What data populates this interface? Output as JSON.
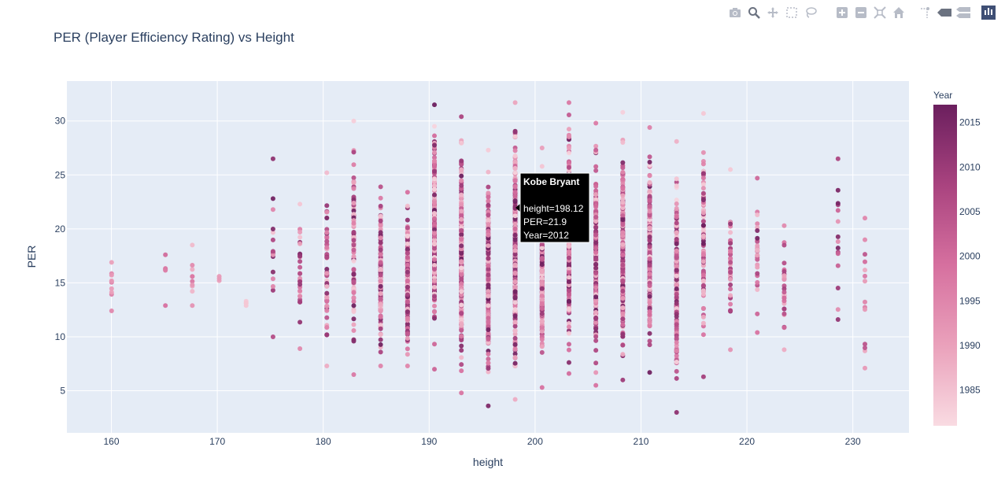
{
  "title": "PER (Player Efficiency Rating) vs Height",
  "toolbar": {
    "icons": [
      "camera-icon",
      "zoom-icon",
      "pan-icon",
      "box-select-icon",
      "lasso-icon",
      "zoom-in-icon",
      "zoom-out-icon",
      "autoscale-icon",
      "home-icon",
      "spike-lines-icon",
      "hover-closest-icon",
      "hover-compare-icon",
      "plotly-logo-icon"
    ]
  },
  "tooltip": {
    "name": "Kobe Bryant",
    "line1": "height=198.12",
    "line2": "PER=21.9",
    "line3": "Year=2012"
  },
  "colors": {
    "plot_bg": "#e5ecf6",
    "grid": "#ffffff",
    "text": "#2a3f5f",
    "scale_low": "#f6d3dc",
    "scale_mid": "#d96a9c",
    "scale_high": "#6b1f5e"
  },
  "chart_data": {
    "type": "scatter",
    "title": "PER (Player Efficiency Rating) vs Height",
    "xlabel": "height",
    "ylabel": "PER",
    "xlim": [
      155.8,
      235.3
    ],
    "ylim": [
      1.1,
      33.7
    ],
    "xticks": [
      160,
      170,
      180,
      190,
      200,
      210,
      220,
      230
    ],
    "yticks": [
      5,
      10,
      15,
      20,
      25,
      30
    ],
    "grid": true,
    "colorbar": {
      "title": "Year",
      "range": [
        1981,
        2017
      ],
      "ticks": [
        1985,
        1990,
        1995,
        2000,
        2005,
        2010,
        2015
      ]
    },
    "columns": [
      {
        "x": 160.02,
        "min": 12.4,
        "max": 16.9,
        "n": 10,
        "year": [
          1986,
          1999
        ]
      },
      {
        "x": 165.1,
        "min": 12.9,
        "max": 17.6,
        "n": 5,
        "year": [
          1995,
          2005
        ]
      },
      {
        "x": 167.64,
        "min": 12.9,
        "max": 18.5,
        "n": 10,
        "year": [
          1985,
          1998
        ]
      },
      {
        "x": 170.18,
        "min": 15.2,
        "max": 15.6,
        "n": 3,
        "year": [
          1990,
          1992
        ]
      },
      {
        "x": 172.72,
        "min": 12.9,
        "max": 13.3,
        "n": 4,
        "year": [
          1983,
          1985
        ]
      },
      {
        "x": 175.26,
        "min": 10.0,
        "max": 26.5,
        "n": 16,
        "year": [
          1985,
          2016
        ]
      },
      {
        "x": 177.8,
        "min": 8.9,
        "max": 22.3,
        "n": 28,
        "year": [
          1984,
          2014
        ]
      },
      {
        "x": 180.34,
        "min": 7.3,
        "max": 25.2,
        "n": 55,
        "year": [
          1983,
          2016
        ]
      },
      {
        "x": 182.88,
        "min": 6.5,
        "max": 30.0,
        "n": 90,
        "year": [
          1982,
          2017
        ]
      },
      {
        "x": 185.42,
        "min": 7.3,
        "max": 23.9,
        "n": 140,
        "year": [
          1982,
          2017
        ]
      },
      {
        "x": 187.96,
        "min": 7.3,
        "max": 23.4,
        "n": 170,
        "year": [
          1982,
          2017
        ]
      },
      {
        "x": 190.5,
        "min": 7.0,
        "max": 31.5,
        "n": 230,
        "year": [
          1982,
          2017
        ]
      },
      {
        "x": 193.04,
        "min": 4.8,
        "max": 30.4,
        "n": 240,
        "year": [
          1982,
          2017
        ]
      },
      {
        "x": 195.58,
        "min": 3.6,
        "max": 27.3,
        "n": 250,
        "year": [
          1982,
          2017
        ]
      },
      {
        "x": 198.12,
        "min": 4.2,
        "max": 31.7,
        "n": 280,
        "year": [
          1982,
          2017
        ]
      },
      {
        "x": 200.66,
        "min": 5.3,
        "max": 27.5,
        "n": 250,
        "year": [
          1982,
          2017
        ]
      },
      {
        "x": 203.2,
        "min": 6.6,
        "max": 31.7,
        "n": 260,
        "year": [
          1982,
          2017
        ]
      },
      {
        "x": 205.74,
        "min": 5.5,
        "max": 29.8,
        "n": 250,
        "year": [
          1982,
          2017
        ]
      },
      {
        "x": 208.28,
        "min": 6.0,
        "max": 30.8,
        "n": 230,
        "year": [
          1982,
          2017
        ]
      },
      {
        "x": 210.82,
        "min": 6.7,
        "max": 29.4,
        "n": 200,
        "year": [
          1982,
          2017
        ]
      },
      {
        "x": 213.36,
        "min": 3.0,
        "max": 28.1,
        "n": 180,
        "year": [
          1982,
          2017
        ]
      },
      {
        "x": 215.9,
        "min": 6.3,
        "max": 30.7,
        "n": 90,
        "year": [
          1982,
          2017
        ]
      },
      {
        "x": 218.44,
        "min": 8.8,
        "max": 25.5,
        "n": 45,
        "year": [
          1982,
          2012
        ]
      },
      {
        "x": 220.98,
        "min": 10.4,
        "max": 24.7,
        "n": 28,
        "year": [
          1985,
          2016
        ]
      },
      {
        "x": 223.52,
        "min": 8.8,
        "max": 20.3,
        "n": 30,
        "year": [
          1986,
          2010
        ]
      },
      {
        "x": 228.6,
        "min": 11.6,
        "max": 26.5,
        "n": 15,
        "year": [
          1992,
          2016
        ]
      },
      {
        "x": 231.14,
        "min": 7.1,
        "max": 21.0,
        "n": 14,
        "year": [
          1986,
          2005
        ]
      }
    ],
    "highlight": {
      "name": "Kobe Bryant",
      "x": 198.12,
      "y": 21.9,
      "year": 2012
    }
  }
}
